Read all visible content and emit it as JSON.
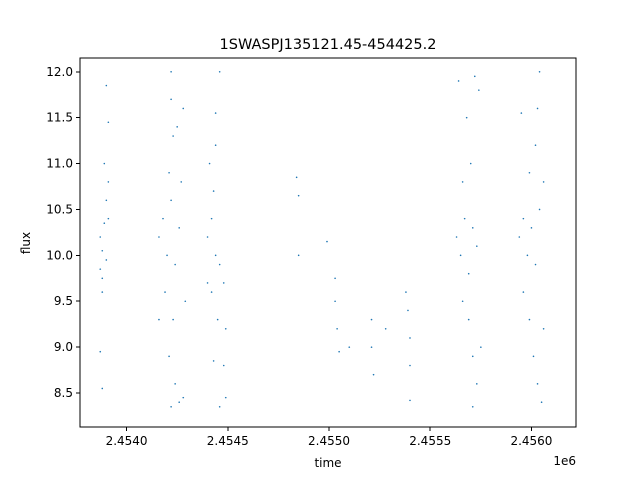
{
  "chart_data": {
    "type": "scatter",
    "title": "1SWASPJ135121.45-454425.2",
    "xlabel": "time",
    "ylabel": "flux",
    "x_offset_label": "1e6",
    "xlim": [
      2.45377,
      2.45622
    ],
    "ylim": [
      8.13,
      12.15
    ],
    "x_ticks": [
      2.454,
      2.4545,
      2.455,
      2.4555,
      2.456
    ],
    "x_tick_labels": [
      "2.4540",
      "2.4545",
      "2.4550",
      "2.4555",
      "2.4560"
    ],
    "y_ticks": [
      8.5,
      9.0,
      9.5,
      10.0,
      10.5,
      11.0,
      11.5,
      12.0
    ],
    "y_tick_labels": [
      "8.5",
      "9.0",
      "9.5",
      "10.0",
      "10.5",
      "11.0",
      "11.5",
      "12.0"
    ],
    "grid": false,
    "marker_color": "#1f77b4",
    "series": [
      {
        "points": [
          [
            2.45387,
            10.2
          ],
          [
            2.45388,
            10.05
          ],
          [
            2.45389,
            10.35
          ],
          [
            2.4539,
            9.95
          ],
          [
            2.45391,
            10.4
          ],
          [
            2.45387,
            9.85
          ],
          [
            2.4539,
            10.6
          ],
          [
            2.45388,
            9.75
          ],
          [
            2.45391,
            10.8
          ],
          [
            2.45389,
            11.0
          ],
          [
            2.45388,
            9.6
          ],
          [
            2.4539,
            11.85
          ],
          [
            2.45387,
            8.95
          ],
          [
            2.45388,
            8.55
          ],
          [
            2.45391,
            11.45
          ],
          [
            2.45416,
            10.2
          ],
          [
            2.45418,
            10.4
          ],
          [
            2.4542,
            10.0
          ],
          [
            2.45422,
            10.6
          ],
          [
            2.45424,
            9.9
          ],
          [
            2.45426,
            10.3
          ],
          [
            2.45421,
            10.9
          ],
          [
            2.45423,
            11.3
          ],
          [
            2.45422,
            11.7
          ],
          [
            2.45425,
            11.4
          ],
          [
            2.45419,
            9.6
          ],
          [
            2.45423,
            9.3
          ],
          [
            2.45421,
            8.9
          ],
          [
            2.45424,
            8.6
          ],
          [
            2.45422,
            8.35
          ],
          [
            2.45426,
            8.4
          ],
          [
            2.45422,
            12.0
          ],
          [
            2.45428,
            11.6
          ],
          [
            2.45427,
            10.8
          ],
          [
            2.45429,
            9.5
          ],
          [
            2.45416,
            9.3
          ],
          [
            2.45428,
            8.45
          ],
          [
            2.4544,
            10.2
          ],
          [
            2.45442,
            10.4
          ],
          [
            2.45444,
            10.0
          ],
          [
            2.45446,
            9.9
          ],
          [
            2.45443,
            10.7
          ],
          [
            2.45441,
            11.0
          ],
          [
            2.45444,
            11.2
          ],
          [
            2.45442,
            9.6
          ],
          [
            2.45445,
            9.3
          ],
          [
            2.45443,
            8.85
          ],
          [
            2.45446,
            12.0
          ],
          [
            2.45448,
            9.7
          ],
          [
            2.45449,
            9.2
          ],
          [
            2.45448,
            8.8
          ],
          [
            2.45449,
            8.45
          ],
          [
            2.45446,
            8.35
          ],
          [
            2.45444,
            11.55
          ],
          [
            2.4544,
            9.7
          ],
          [
            2.45484,
            10.85
          ],
          [
            2.45485,
            10.65
          ],
          [
            2.45485,
            10.0
          ],
          [
            2.45499,
            10.15
          ],
          [
            2.45503,
            9.75
          ],
          [
            2.45503,
            9.5
          ],
          [
            2.45504,
            9.2
          ],
          [
            2.45505,
            8.95
          ],
          [
            2.4551,
            9.0
          ],
          [
            2.45521,
            9.3
          ],
          [
            2.45521,
            9.0
          ],
          [
            2.45522,
            8.7
          ],
          [
            2.45528,
            9.2
          ],
          [
            2.45538,
            9.6
          ],
          [
            2.45539,
            9.4
          ],
          [
            2.4554,
            9.1
          ],
          [
            2.4554,
            8.8
          ],
          [
            2.4554,
            8.42
          ],
          [
            2.45563,
            10.2
          ],
          [
            2.45565,
            10.0
          ],
          [
            2.45567,
            10.4
          ],
          [
            2.45569,
            9.8
          ],
          [
            2.45571,
            10.3
          ],
          [
            2.45573,
            10.1
          ],
          [
            2.45566,
            10.8
          ],
          [
            2.4557,
            11.0
          ],
          [
            2.45568,
            11.5
          ],
          [
            2.45572,
            11.95
          ],
          [
            2.45566,
            9.5
          ],
          [
            2.45569,
            9.3
          ],
          [
            2.45571,
            8.9
          ],
          [
            2.45573,
            8.6
          ],
          [
            2.45571,
            8.35
          ],
          [
            2.45575,
            9.0
          ],
          [
            2.45564,
            11.9
          ],
          [
            2.45574,
            11.8
          ],
          [
            2.45594,
            10.2
          ],
          [
            2.45596,
            10.4
          ],
          [
            2.45598,
            10.0
          ],
          [
            2.456,
            10.3
          ],
          [
            2.45602,
            9.9
          ],
          [
            2.45604,
            10.5
          ],
          [
            2.45599,
            10.9
          ],
          [
            2.45602,
            11.2
          ],
          [
            2.45603,
            11.6
          ],
          [
            2.45604,
            12.0
          ],
          [
            2.45596,
            9.6
          ],
          [
            2.45599,
            9.3
          ],
          [
            2.45601,
            8.9
          ],
          [
            2.45603,
            8.6
          ],
          [
            2.45605,
            8.4
          ],
          [
            2.45606,
            10.8
          ],
          [
            2.45595,
            11.55
          ],
          [
            2.45606,
            9.2
          ]
        ]
      }
    ]
  }
}
